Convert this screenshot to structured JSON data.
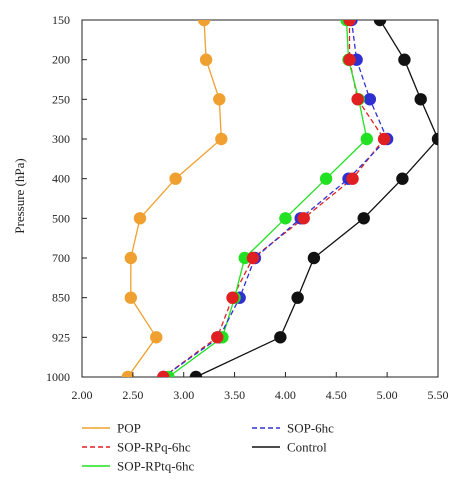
{
  "chart_data": {
    "type": "line",
    "ylabel": "Pressure (hPa)",
    "xlabel": "",
    "xlim": [
      2.0,
      5.5
    ],
    "x_ticks": [
      "2.00",
      "2.50",
      "3.00",
      "3.50",
      "4.00",
      "4.50",
      "5.00",
      "5.50"
    ],
    "y_levels": [
      "150",
      "200",
      "250",
      "300",
      "400",
      "500",
      "700",
      "850",
      "925",
      "1000"
    ],
    "grid": false,
    "legend_position": "bottom",
    "series": [
      {
        "name": "POP",
        "color": "#f0a030",
        "dash": "solid",
        "marker": true,
        "values": [
          3.2,
          3.22,
          3.35,
          3.37,
          2.92,
          2.57,
          2.48,
          2.48,
          2.73,
          2.45
        ]
      },
      {
        "name": "SOP-RPq-6hc",
        "color": "#e02020",
        "dash": "dashed",
        "marker": true,
        "values": [
          4.63,
          4.63,
          4.71,
          4.97,
          4.66,
          4.18,
          3.68,
          3.48,
          3.33,
          2.8
        ]
      },
      {
        "name": "SOP-RPtq-6hc",
        "color": "#22e022",
        "dash": "solid",
        "marker": true,
        "values": [
          4.6,
          4.62,
          4.72,
          4.8,
          4.4,
          4.0,
          3.6,
          3.5,
          3.38,
          2.85
        ]
      },
      {
        "name": "SOP-6hc",
        "color": "#3030d0",
        "dash": "dashed",
        "marker": true,
        "values": [
          4.65,
          4.7,
          4.83,
          5.0,
          4.62,
          4.15,
          3.7,
          3.55,
          3.35,
          2.8
        ]
      },
      {
        "name": "Control",
        "color": "#111111",
        "dash": "solid",
        "marker": true,
        "values": [
          4.93,
          5.17,
          5.33,
          5.5,
          5.15,
          4.77,
          4.28,
          4.12,
          3.95,
          3.12
        ]
      }
    ],
    "marker_draw_order": [
      "POP",
      "SOP-6hc",
      "Control",
      "SOP-RPtq-6hc",
      "SOP-RPq-6hc"
    ]
  }
}
